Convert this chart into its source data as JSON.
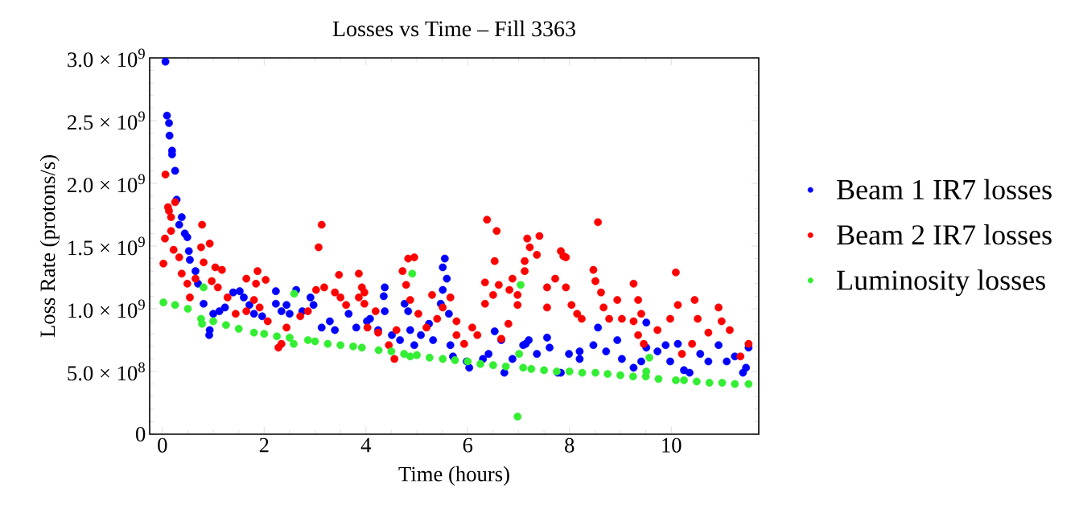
{
  "chart_data": {
    "type": "scatter",
    "title": "Losses vs Time – Fill 3363",
    "xlabel": "Time (hours)",
    "ylabel": "Loss Rate (protons/s)",
    "xlim": [
      -0.25,
      11.72
    ],
    "ylim": [
      0,
      3000000000.0
    ],
    "xticks": [
      0,
      2,
      4,
      6,
      8,
      10
    ],
    "yticks": [
      0,
      {
        "value": 500000000.0,
        "label": "5.0 × 10$^{8}$"
      },
      {
        "value": 1000000000.0,
        "label": "1.0 × 10$^{9}$"
      },
      {
        "value": 1500000000.0,
        "label": "1.5 × 10$^{9}$"
      },
      {
        "value": 2000000000.0,
        "label": "2.0 × 10$^{9}$"
      },
      {
        "value": 2500000000.0,
        "label": "2.5 × 10$^{9}$"
      },
      {
        "value": 3000000000.0,
        "label": "3.0 × 10$^{9}$"
      }
    ],
    "marker": "circle",
    "legend": "right",
    "series": [
      {
        "name": "Beam 1 IR7 losses",
        "color": "#0000ff",
        "x": [
          0.06,
          0.09,
          0.13,
          0.14,
          0.19,
          0.19,
          0.25,
          0.28,
          0.33,
          0.38,
          0.44,
          0.49,
          0.52,
          0.54,
          0.65,
          0.7,
          0.81,
          0.92,
          0.93,
          1.0,
          1.12,
          1.23,
          1.39,
          1.52,
          1.6,
          1.71,
          1.8,
          1.96,
          2.07,
          2.23,
          2.23,
          2.34,
          2.44,
          2.5,
          2.63,
          2.75,
          2.91,
          2.97,
          3.13,
          3.29,
          3.39,
          3.66,
          3.81,
          4.02,
          4.08,
          4.24,
          4.35,
          4.37,
          4.37,
          4.51,
          4.67,
          4.76,
          4.83,
          4.87,
          4.95,
          5.08,
          5.24,
          5.32,
          5.47,
          5.51,
          5.51,
          5.55,
          5.59,
          5.63,
          5.66,
          5.71,
          5.98,
          6.03,
          6.3,
          6.41,
          6.53,
          6.66,
          6.72,
          6.88,
          7.09,
          7.14,
          7.2,
          7.36,
          7.56,
          7.61,
          7.77,
          7.83,
          7.99,
          8.2,
          8.2,
          8.47,
          8.56,
          8.72,
          8.94,
          9.03,
          9.26,
          9.41,
          9.51,
          9.51,
          9.73,
          9.89,
          9.98,
          10.13,
          10.25,
          10.36,
          10.57,
          10.73,
          10.93,
          11.09,
          11.25,
          11.41,
          11.47,
          11.52
        ],
        "values": [
          2970000000.0,
          2540000000.0,
          2480000000.0,
          2380000000.0,
          2260000000.0,
          2230000000.0,
          2100000000.0,
          1870000000.0,
          1670000000.0,
          1730000000.0,
          1600000000.0,
          1570000000.0,
          1460000000.0,
          1390000000.0,
          1300000000.0,
          1200000000.0,
          1040000000.0,
          790000000.0,
          830000000.0,
          960000000.0,
          980000000.0,
          1010000000.0,
          1130000000.0,
          1140000000.0,
          1090000000.0,
          1030000000.0,
          960000000.0,
          940000000.0,
          null,
          1140000000.0,
          1040000000.0,
          980000000.0,
          1030000000.0,
          960000000.0,
          1150000000.0,
          980000000.0,
          1090000000.0,
          1030000000.0,
          850000000.0,
          900000000.0,
          830000000.0,
          960000000.0,
          850000000.0,
          900000000.0,
          920000000.0,
          830000000.0,
          1100000000.0,
          1170000000.0,
          980000000.0,
          790000000.0,
          750000000.0,
          1040000000.0,
          980000000.0,
          830000000.0,
          710000000.0,
          790000000.0,
          880000000.0,
          750000000.0,
          1040000000.0,
          1150000000.0,
          1330000000.0,
          1400000000.0,
          1240000000.0,
          960000000.0,
          710000000.0,
          620000000.0,
          580000000.0,
          530000000.0,
          600000000.0,
          640000000.0,
          820000000.0,
          750000000.0,
          490000000.0,
          600000000.0,
          710000000.0,
          720000000.0,
          750000000.0,
          640000000.0,
          770000000.0,
          690000000.0,
          490000000.0,
          490000000.0,
          640000000.0,
          660000000.0,
          600000000.0,
          710000000.0,
          850000000.0,
          660000000.0,
          750000000.0,
          600000000.0,
          530000000.0,
          580000000.0,
          890000000.0,
          690000000.0,
          660000000.0,
          710000000.0,
          580000000.0,
          720000000.0,
          510000000.0,
          490000000.0,
          640000000.0,
          580000000.0,
          710000000.0,
          580000000.0,
          620000000.0,
          490000000.0,
          530000000.0,
          690000000.0
        ]
      },
      {
        "name": "Beam 2 IR7 losses",
        "color": "#ff0000",
        "x": [
          0.02,
          0.05,
          0.06,
          0.11,
          0.13,
          0.17,
          0.17,
          0.22,
          0.25,
          0.33,
          0.38,
          0.49,
          0.54,
          0.65,
          0.76,
          0.78,
          0.81,
          0.93,
          0.97,
          1.04,
          1.09,
          1.17,
          1.28,
          1.44,
          1.65,
          1.65,
          1.8,
          1.84,
          1.87,
          1.91,
          2.03,
          2.07,
          2.28,
          2.34,
          2.44,
          2.71,
          2.86,
          3.02,
          3.07,
          3.13,
          3.18,
          3.39,
          3.47,
          3.5,
          3.61,
          3.86,
          3.86,
          3.92,
          3.97,
          3.97,
          4.03,
          4.19,
          4.24,
          4.45,
          4.56,
          4.6,
          4.72,
          4.79,
          4.83,
          4.87,
          4.95,
          5.03,
          5.19,
          5.3,
          5.4,
          5.51,
          5.66,
          5.78,
          5.78,
          5.93,
          6.09,
          6.19,
          6.34,
          6.34,
          6.38,
          6.5,
          6.53,
          6.57,
          6.61,
          6.66,
          6.8,
          6.82,
          6.88,
          6.98,
          6.98,
          7.12,
          7.12,
          7.17,
          7.22,
          7.36,
          7.41,
          7.56,
          7.56,
          7.72,
          7.83,
          7.88,
          7.93,
          7.93,
          8.04,
          8.15,
          8.24,
          8.47,
          8.51,
          8.56,
          8.62,
          8.67,
          8.78,
          8.94,
          9.03,
          9.26,
          9.26,
          9.35,
          9.35,
          9.41,
          9.46,
          9.73,
          9.98,
          10.09,
          10.13,
          10.21,
          10.41,
          10.46,
          10.52,
          10.73,
          10.93,
          10.99,
          11.15,
          11.36,
          11.52
        ],
        "values": [
          1360000000.0,
          1560000000.0,
          2070000000.0,
          1810000000.0,
          1780000000.0,
          1730000000.0,
          1620000000.0,
          1470000000.0,
          1850000000.0,
          1410000000.0,
          1280000000.0,
          1200000000.0,
          1090000000.0,
          1240000000.0,
          1490000000.0,
          1670000000.0,
          1370000000.0,
          1520000000.0,
          1220000000.0,
          1330000000.0,
          1170000000.0,
          1310000000.0,
          1090000000.0,
          960000000.0,
          1240000000.0,
          980000000.0,
          1070000000.0,
          1200000000.0,
          1300000000.0,
          1010000000.0,
          1230000000.0,
          900000000.0,
          690000000.0,
          720000000.0,
          850000000.0,
          940000000.0,
          980000000.0,
          1150000000.0,
          1490000000.0,
          1670000000.0,
          1170000000.0,
          1130000000.0,
          1270000000.0,
          1090000000.0,
          1030000000.0,
          1280000000.0,
          1090000000.0,
          1170000000.0,
          1130000000.0,
          1040000000.0,
          850000000.0,
          980000000.0,
          810000000.0,
          710000000.0,
          600000000.0,
          830000000.0,
          1300000000.0,
          1190000000.0,
          1400000000.0,
          1070000000.0,
          1410000000.0,
          960000000.0,
          850000000.0,
          1110000000.0,
          920000000.0,
          1010000000.0,
          1090000000.0,
          900000000.0,
          790000000.0,
          720000000.0,
          850000000.0,
          790000000.0,
          1210000000.0,
          1040000000.0,
          1710000000.0,
          1110000000.0,
          1380000000.0,
          1620000000.0,
          1190000000.0,
          760000000.0,
          880000000.0,
          1150000000.0,
          1240000000.0,
          1110000000.0,
          1030000000.0,
          1300000000.0,
          1380000000.0,
          1560000000.0,
          1490000000.0,
          1430000000.0,
          1580000000.0,
          1170000000.0,
          1010000000.0,
          1240000000.0,
          1460000000.0,
          1420000000.0,
          1410000000.0,
          1170000000.0,
          1030000000.0,
          960000000.0,
          920000000.0,
          1310000000.0,
          1220000000.0,
          1690000000.0,
          1130000000.0,
          1010000000.0,
          920000000.0,
          1070000000.0,
          920000000.0,
          1200000000.0,
          900000000.0,
          1070000000.0,
          790000000.0,
          960000000.0,
          720000000.0,
          830000000.0,
          920000000.0,
          1290000000.0,
          1030000000.0,
          640000000.0,
          720000000.0,
          1070000000.0,
          920000000.0,
          810000000.0,
          1010000000.0,
          900000000.0,
          830000000.0,
          620000000.0,
          720000000.0
        ]
      },
      {
        "name": "Luminosity losses",
        "color": "#33ee33",
        "x": [
          0.02,
          0.25,
          0.5,
          0.76,
          0.78,
          0.81,
          1.0,
          1.25,
          1.5,
          1.8,
          2.0,
          2.25,
          2.5,
          2.58,
          2.59,
          2.86,
          3.0,
          3.25,
          3.5,
          3.75,
          3.92,
          4.25,
          4.5,
          4.75,
          4.87,
          4.91,
          5.0,
          5.25,
          5.51,
          5.75,
          6.0,
          6.25,
          6.5,
          6.75,
          6.98,
          7.01,
          7.04,
          7.09,
          7.25,
          7.5,
          7.75,
          8.0,
          8.25,
          8.51,
          8.75,
          9.0,
          9.25,
          9.5,
          9.51,
          9.57,
          9.75,
          10.09,
          10.25,
          10.5,
          10.75,
          11.0,
          11.25,
          11.52
        ],
        "values": [
          1050000000.0,
          1030000000.0,
          1000000000.0,
          920000000.0,
          880000000.0,
          1170000000.0,
          900000000.0,
          870000000.0,
          840000000.0,
          810000000.0,
          800000000.0,
          780000000.0,
          770000000.0,
          720000000.0,
          1120000000.0,
          750000000.0,
          740000000.0,
          720000000.0,
          710000000.0,
          700000000.0,
          690000000.0,
          670000000.0,
          660000000.0,
          640000000.0,
          620000000.0,
          1280000000.0,
          630000000.0,
          610000000.0,
          600000000.0,
          590000000.0,
          580000000.0,
          560000000.0,
          550000000.0,
          540000000.0,
          140000000.0,
          640000000.0,
          1190000000.0,
          530000000.0,
          520000000.0,
          510000000.0,
          500000000.0,
          500000000.0,
          490000000.0,
          490000000.0,
          480000000.0,
          470000000.0,
          460000000.0,
          460000000.0,
          500000000.0,
          610000000.0,
          440000000.0,
          430000000.0,
          430000000.0,
          420000000.0,
          410000000.0,
          410000000.0,
          400000000.0,
          400000000.0
        ]
      }
    ]
  }
}
